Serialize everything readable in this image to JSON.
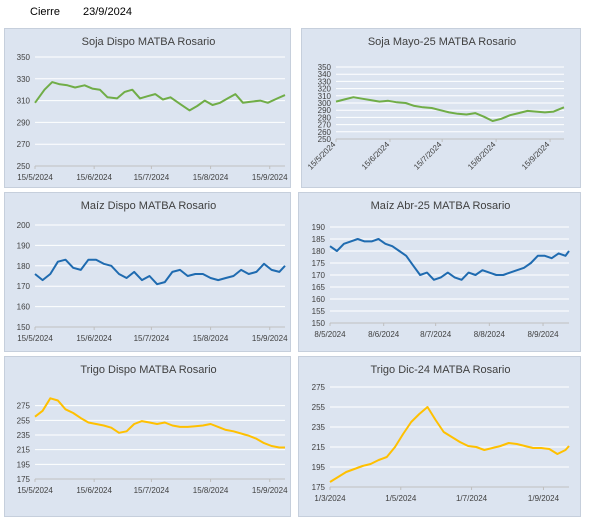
{
  "header": {
    "label": "Cierre",
    "date": "23/9/2024"
  },
  "chart_data": [
    {
      "type": "line",
      "title": "Soja Dispo MATBA Rosario",
      "color": "#70ad47",
      "ylim": [
        250,
        350
      ],
      "yticks": [
        250,
        270,
        290,
        310,
        330,
        350
      ],
      "xlabels": [
        "15/5/2024",
        "15/6/2024",
        "15/7/2024",
        "15/8/2024",
        "15/9/2024"
      ],
      "x_rotated": false,
      "xrange": [
        "2024-05-15",
        "2024-09-23"
      ],
      "x": [
        "2024-05-15",
        "2024-05-20",
        "2024-05-24",
        "2024-05-28",
        "2024-06-01",
        "2024-06-05",
        "2024-06-10",
        "2024-06-14",
        "2024-06-18",
        "2024-06-22",
        "2024-06-27",
        "2024-07-01",
        "2024-07-05",
        "2024-07-09",
        "2024-07-13",
        "2024-07-17",
        "2024-07-21",
        "2024-07-25",
        "2024-07-30",
        "2024-08-04",
        "2024-08-08",
        "2024-08-12",
        "2024-08-16",
        "2024-08-20",
        "2024-08-24",
        "2024-08-28",
        "2024-09-01",
        "2024-09-05",
        "2024-09-10",
        "2024-09-14",
        "2024-09-19",
        "2024-09-23"
      ],
      "series": [
        {
          "values": [
            308,
            320,
            327,
            325,
            324,
            322,
            324,
            321,
            320,
            313,
            312,
            318,
            320,
            312,
            314,
            316,
            311,
            313,
            307,
            301,
            305,
            310,
            306,
            308,
            312,
            316,
            308,
            309,
            310,
            308,
            312,
            315
          ]
        }
      ]
    },
    {
      "type": "line",
      "title": "Soja Mayo-25 MATBA Rosario",
      "color": "#70ad47",
      "ylim": [
        250,
        350
      ],
      "yticks": [
        250,
        260,
        270,
        280,
        290,
        300,
        310,
        320,
        330,
        340,
        350
      ],
      "xlabels": [
        "15/5/2024",
        "15/6/2024",
        "15/7/2024",
        "15/8/2024",
        "15/9/2024"
      ],
      "x_rotated": true,
      "xrange": [
        "2024-05-15",
        "2024-09-23"
      ],
      "x": [
        "2024-05-15",
        "2024-05-20",
        "2024-05-25",
        "2024-05-30",
        "2024-06-04",
        "2024-06-09",
        "2024-06-14",
        "2024-06-19",
        "2024-06-24",
        "2024-06-29",
        "2024-07-04",
        "2024-07-09",
        "2024-07-14",
        "2024-07-19",
        "2024-07-24",
        "2024-07-29",
        "2024-08-03",
        "2024-08-08",
        "2024-08-13",
        "2024-08-18",
        "2024-08-23",
        "2024-08-28",
        "2024-09-02",
        "2024-09-07",
        "2024-09-12",
        "2024-09-17",
        "2024-09-23"
      ],
      "series": [
        {
          "values": [
            302,
            305,
            308,
            306,
            304,
            302,
            303,
            301,
            300,
            296,
            294,
            293,
            290,
            287,
            285,
            284,
            286,
            281,
            275,
            278,
            283,
            286,
            289,
            288,
            287,
            288,
            294
          ]
        }
      ]
    },
    {
      "type": "line",
      "title": "Maíz Dispo MATBA Rosario",
      "color": "#1f6bb0",
      "ylim": [
        150,
        200
      ],
      "yticks": [
        150,
        160,
        170,
        180,
        190,
        200
      ],
      "xlabels": [
        "15/5/2024",
        "15/6/2024",
        "15/7/2024",
        "15/8/2024",
        "15/9/2024"
      ],
      "x_rotated": false,
      "xrange": [
        "2024-05-15",
        "2024-09-23"
      ],
      "x": [
        "2024-05-15",
        "2024-05-19",
        "2024-05-23",
        "2024-05-27",
        "2024-05-31",
        "2024-06-04",
        "2024-06-08",
        "2024-06-12",
        "2024-06-16",
        "2024-06-20",
        "2024-06-24",
        "2024-06-28",
        "2024-07-02",
        "2024-07-06",
        "2024-07-10",
        "2024-07-14",
        "2024-07-18",
        "2024-07-22",
        "2024-07-26",
        "2024-07-30",
        "2024-08-03",
        "2024-08-07",
        "2024-08-11",
        "2024-08-15",
        "2024-08-19",
        "2024-08-23",
        "2024-08-27",
        "2024-08-31",
        "2024-09-04",
        "2024-09-08",
        "2024-09-12",
        "2024-09-16",
        "2024-09-20",
        "2024-09-23"
      ],
      "series": [
        {
          "values": [
            176,
            173,
            176,
            182,
            183,
            179,
            178,
            183,
            183,
            181,
            180,
            176,
            174,
            177,
            173,
            175,
            171,
            172,
            177,
            178,
            175,
            176,
            176,
            174,
            173,
            174,
            175,
            178,
            176,
            177,
            181,
            178,
            177,
            180
          ]
        }
      ]
    },
    {
      "type": "line",
      "title": "Maíz Abr-25 MATBA Rosario",
      "color": "#1f6bb0",
      "ylim": [
        150,
        190
      ],
      "yticks": [
        150,
        155,
        160,
        165,
        170,
        175,
        180,
        185,
        190
      ],
      "xlabels": [
        "8/5/2024",
        "8/6/2024",
        "8/7/2024",
        "8/8/2024",
        "8/9/2024"
      ],
      "x_rotated": false,
      "xrange": [
        "2024-05-08",
        "2024-09-23"
      ],
      "x": [
        "2024-05-08",
        "2024-05-12",
        "2024-05-16",
        "2024-05-20",
        "2024-05-24",
        "2024-05-28",
        "2024-06-01",
        "2024-06-05",
        "2024-06-09",
        "2024-06-13",
        "2024-06-17",
        "2024-06-21",
        "2024-06-25",
        "2024-06-29",
        "2024-07-03",
        "2024-07-07",
        "2024-07-11",
        "2024-07-15",
        "2024-07-19",
        "2024-07-23",
        "2024-07-27",
        "2024-07-31",
        "2024-08-04",
        "2024-08-08",
        "2024-08-12",
        "2024-08-16",
        "2024-08-20",
        "2024-08-24",
        "2024-08-28",
        "2024-09-01",
        "2024-09-05",
        "2024-09-09",
        "2024-09-13",
        "2024-09-17",
        "2024-09-21",
        "2024-09-23"
      ],
      "series": [
        {
          "values": [
            182,
            180,
            183,
            184,
            185,
            184,
            184,
            185,
            183,
            182,
            180,
            178,
            174,
            170,
            171,
            168,
            169,
            171,
            169,
            168,
            171,
            170,
            172,
            171,
            170,
            170,
            171,
            172,
            173,
            175,
            178,
            178,
            177,
            179,
            178,
            180
          ]
        }
      ]
    },
    {
      "type": "line",
      "title": "Trigo Dispo MATBA Rosario",
      "color": "#ffc000",
      "ylim": [
        175,
        295
      ],
      "yticks": [
        175,
        195,
        215,
        235,
        255,
        275
      ],
      "xlabels": [
        "15/5/2024",
        "15/6/2024",
        "15/7/2024",
        "15/8/2024",
        "15/9/2024"
      ],
      "x_rotated": false,
      "xrange": [
        "2024-05-15",
        "2024-09-23"
      ],
      "x": [
        "2024-05-15",
        "2024-05-19",
        "2024-05-23",
        "2024-05-27",
        "2024-05-31",
        "2024-06-04",
        "2024-06-08",
        "2024-06-12",
        "2024-06-16",
        "2024-06-20",
        "2024-06-24",
        "2024-06-28",
        "2024-07-02",
        "2024-07-06",
        "2024-07-10",
        "2024-07-14",
        "2024-07-18",
        "2024-07-22",
        "2024-07-26",
        "2024-07-30",
        "2024-08-03",
        "2024-08-07",
        "2024-08-11",
        "2024-08-15",
        "2024-08-19",
        "2024-08-23",
        "2024-08-27",
        "2024-08-31",
        "2024-09-04",
        "2024-09-08",
        "2024-09-12",
        "2024-09-16",
        "2024-09-20",
        "2024-09-23"
      ],
      "series": [
        {
          "values": [
            260,
            268,
            285,
            282,
            270,
            265,
            258,
            252,
            250,
            248,
            245,
            238,
            240,
            250,
            254,
            252,
            250,
            252,
            248,
            246,
            246,
            247,
            248,
            250,
            246,
            242,
            240,
            237,
            234,
            230,
            224,
            220,
            218,
            218
          ]
        }
      ]
    },
    {
      "type": "line",
      "title": "Trigo Dic-24 MATBA Rosario",
      "color": "#ffc000",
      "ylim": [
        175,
        275
      ],
      "yticks": [
        175,
        195,
        215,
        235,
        255,
        275
      ],
      "xlabels": [
        "1/3/2024",
        "1/5/2024",
        "1/7/2024",
        "1/9/2024"
      ],
      "x_rotated": false,
      "xrange": [
        "2024-03-01",
        "2024-09-23"
      ],
      "x": [
        "2024-03-01",
        "2024-03-08",
        "2024-03-15",
        "2024-03-22",
        "2024-03-29",
        "2024-04-05",
        "2024-04-12",
        "2024-04-19",
        "2024-04-26",
        "2024-05-03",
        "2024-05-10",
        "2024-05-17",
        "2024-05-24",
        "2024-05-31",
        "2024-06-07",
        "2024-06-14",
        "2024-06-21",
        "2024-06-28",
        "2024-07-05",
        "2024-07-12",
        "2024-07-19",
        "2024-07-26",
        "2024-08-02",
        "2024-08-09",
        "2024-08-16",
        "2024-08-23",
        "2024-08-30",
        "2024-09-06",
        "2024-09-13",
        "2024-09-20",
        "2024-09-23"
      ],
      "series": [
        {
          "values": [
            180,
            185,
            190,
            193,
            196,
            198,
            202,
            205,
            215,
            228,
            240,
            248,
            255,
            242,
            230,
            225,
            220,
            216,
            215,
            212,
            214,
            216,
            219,
            218,
            216,
            214,
            214,
            213,
            208,
            212,
            216
          ]
        }
      ]
    }
  ]
}
